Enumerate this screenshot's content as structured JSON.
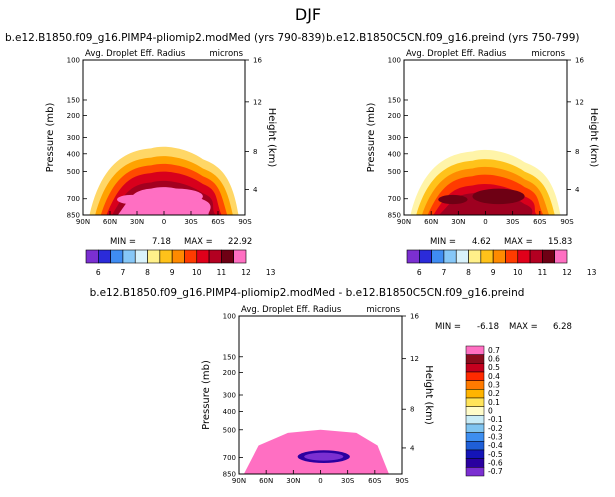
{
  "page": {
    "title": "DJF"
  },
  "chart_data": [
    {
      "type": "contour",
      "title": "b.e12.B1850.f09_g16.PIMP4-pliomip2.modMed (yrs 790-839)",
      "subtitle_left": "Avg. Droplet Eff. Radius",
      "units": "microns",
      "ylabel": "Pressure (mb)",
      "ylabel_right": "Height (km)",
      "x_ticks": [
        "90N",
        "60N",
        "30N",
        "0",
        "30S",
        "60S",
        "90S"
      ],
      "y_ticks": [
        "100",
        "150",
        "200",
        "300",
        "400",
        "500",
        "700",
        "850"
      ],
      "height_ticks": [
        "16",
        "12",
        "8",
        "4"
      ],
      "min_label": "MIN =",
      "min_value": "7.18",
      "max_label": "MAX =",
      "max_value": "22.92",
      "levels": [
        "6",
        "7",
        "8",
        "9",
        "10",
        "11",
        "12",
        "13"
      ]
    },
    {
      "type": "contour",
      "title": "b.e12.B1850C5CN.f09_g16.preind (yrs 750-799)",
      "subtitle_left": "Avg. Droplet Eff. Radius",
      "units": "microns",
      "ylabel": "Pressure (mb)",
      "ylabel_right": "Height (km)",
      "x_ticks": [
        "90N",
        "60N",
        "30N",
        "0",
        "30S",
        "60S",
        "90S"
      ],
      "y_ticks": [
        "100",
        "150",
        "200",
        "300",
        "400",
        "500",
        "700",
        "850"
      ],
      "height_ticks": [
        "16",
        "12",
        "8",
        "4"
      ],
      "min_label": "MIN =",
      "min_value": "4.62",
      "max_label": "MAX =",
      "max_value": "15.83",
      "levels": [
        "6",
        "7",
        "8",
        "9",
        "10",
        "11",
        "12",
        "13"
      ]
    },
    {
      "type": "contour",
      "title": "b.e12.B1850.f09_g16.PIMP4-pliomip2.modMed - b.e12.B1850C5CN.f09_g16.preind",
      "subtitle_left": "Avg. Droplet Eff. Radius",
      "units": "microns",
      "ylabel": "Pressure (mb)",
      "ylabel_right": "Height (km)",
      "x_ticks": [
        "90N",
        "60N",
        "30N",
        "0",
        "30S",
        "60S",
        "90S"
      ],
      "y_ticks": [
        "100",
        "150",
        "200",
        "300",
        "400",
        "500",
        "700",
        "850"
      ],
      "height_ticks": [
        "16",
        "12",
        "8",
        "4"
      ],
      "min_label": "MIN =",
      "min_value": "-6.18",
      "max_label": "MAX =",
      "max_value": "6.28",
      "levels": [
        "0.7",
        "0.6",
        "0.5",
        "0.4",
        "0.3",
        "0.2",
        "0.1",
        "0",
        "-0.1",
        "-0.2",
        "-0.3",
        "-0.4",
        "-0.5",
        "-0.6",
        "-0.7"
      ]
    }
  ],
  "colors": {
    "abs_scale": [
      "#7b2fd1",
      "#2b2bd9",
      "#3f8cf2",
      "#86c7f7",
      "#d9f2fb",
      "#fff08a",
      "#ffc21a",
      "#ff8a00",
      "#ff3b00",
      "#e0001a",
      "#b30021",
      "#6e0014",
      "#ff6fc2"
    ],
    "diff_scale": [
      "#ff6fc2",
      "#8a0c1c",
      "#c4001e",
      "#ff2a00",
      "#ff7a00",
      "#ffb400",
      "#ffe45a",
      "#fffcc9",
      "#c9ecf7",
      "#80c4f0",
      "#3d8ef0",
      "#1f5fd8",
      "#1414b8",
      "#2a00a0",
      "#7b2fd1"
    ]
  }
}
